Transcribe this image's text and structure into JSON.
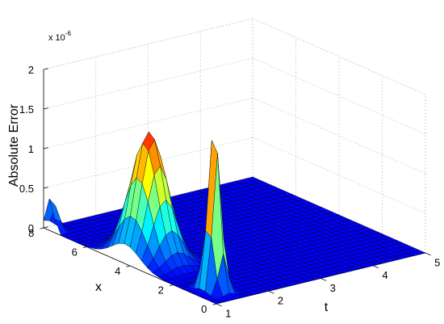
{
  "chart_data": {
    "type": "surface",
    "colormap": "jet",
    "zlabel": "Absolute Error",
    "xlabel": "x",
    "tlabel": "t",
    "z_exponent_prefix": "x 10",
    "z_exponent_power": "-6",
    "x_range": [
      0,
      8
    ],
    "t_range": [
      1,
      5
    ],
    "z_range": [
      0,
      2
    ],
    "x_ticks": [
      "0",
      "2",
      "4",
      "6",
      "8"
    ],
    "t_ticks": [
      "1",
      "2",
      "3",
      "4",
      "5"
    ],
    "z_ticks": [
      "0",
      "0.5",
      "1",
      "1.5",
      "2"
    ],
    "grid": true,
    "peaks": [
      {
        "x": 7.7,
        "t": 1.05,
        "z": 0.6
      },
      {
        "x": 4.2,
        "t": 1.45,
        "z": 1.6
      },
      {
        "x": 0.95,
        "t": 1.35,
        "z": 2.1
      }
    ]
  }
}
